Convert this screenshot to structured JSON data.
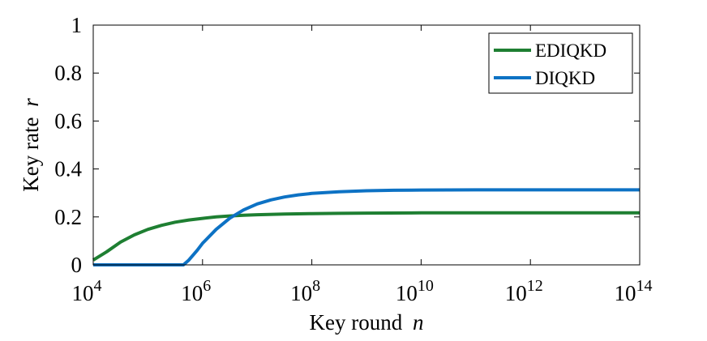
{
  "chart_data": {
    "type": "line",
    "xscale": "log",
    "xlabel": "Key round",
    "xlabel_var": "n",
    "ylabel": "Key rate",
    "ylabel_var": "r",
    "xlim_exp": [
      4,
      14
    ],
    "ylim": [
      0,
      1
    ],
    "x_ticks": [
      {
        "base": "10",
        "exp": "4",
        "value_exp": 4
      },
      {
        "base": "10",
        "exp": "6",
        "value_exp": 6
      },
      {
        "base": "10",
        "exp": "8",
        "value_exp": 8
      },
      {
        "base": "10",
        "exp": "10",
        "value_exp": 10
      },
      {
        "base": "10",
        "exp": "12",
        "value_exp": 12
      },
      {
        "base": "10",
        "exp": "14",
        "value_exp": 14
      }
    ],
    "y_ticks": [
      {
        "label": "0",
        "value": 0
      },
      {
        "label": "0.2",
        "value": 0.2
      },
      {
        "label": "0.4",
        "value": 0.4
      },
      {
        "label": "0.6",
        "value": 0.6
      },
      {
        "label": "0.8",
        "value": 0.8
      },
      {
        "label": "1",
        "value": 1
      }
    ],
    "legend_position": "top-right",
    "series": [
      {
        "name": "EDIQKD",
        "color": "#1e7f32",
        "log10_x": [
          4,
          4.25,
          4.5,
          4.75,
          5,
          5.25,
          5.5,
          5.75,
          6,
          6.25,
          6.5,
          6.75,
          7,
          7.5,
          8,
          8.5,
          9,
          10,
          11,
          12,
          13,
          14
        ],
        "y": [
          0.02,
          0.055,
          0.095,
          0.125,
          0.148,
          0.165,
          0.178,
          0.187,
          0.194,
          0.2,
          0.204,
          0.207,
          0.209,
          0.212,
          0.214,
          0.215,
          0.216,
          0.217,
          0.217,
          0.217,
          0.217,
          0.217
        ]
      },
      {
        "name": "DIQKD",
        "color": "#0d72c4",
        "log10_x": [
          4,
          4.5,
          5,
          5.5,
          5.65,
          5.75,
          5.9,
          6,
          6.25,
          6.5,
          6.75,
          7,
          7.25,
          7.5,
          7.75,
          8,
          8.5,
          9,
          9.5,
          10,
          11,
          12,
          13,
          14
        ],
        "y": [
          0,
          0,
          0,
          0,
          0,
          0.02,
          0.06,
          0.09,
          0.148,
          0.195,
          0.229,
          0.254,
          0.271,
          0.283,
          0.292,
          0.298,
          0.305,
          0.309,
          0.311,
          0.312,
          0.313,
          0.313,
          0.313,
          0.313
        ]
      }
    ]
  }
}
